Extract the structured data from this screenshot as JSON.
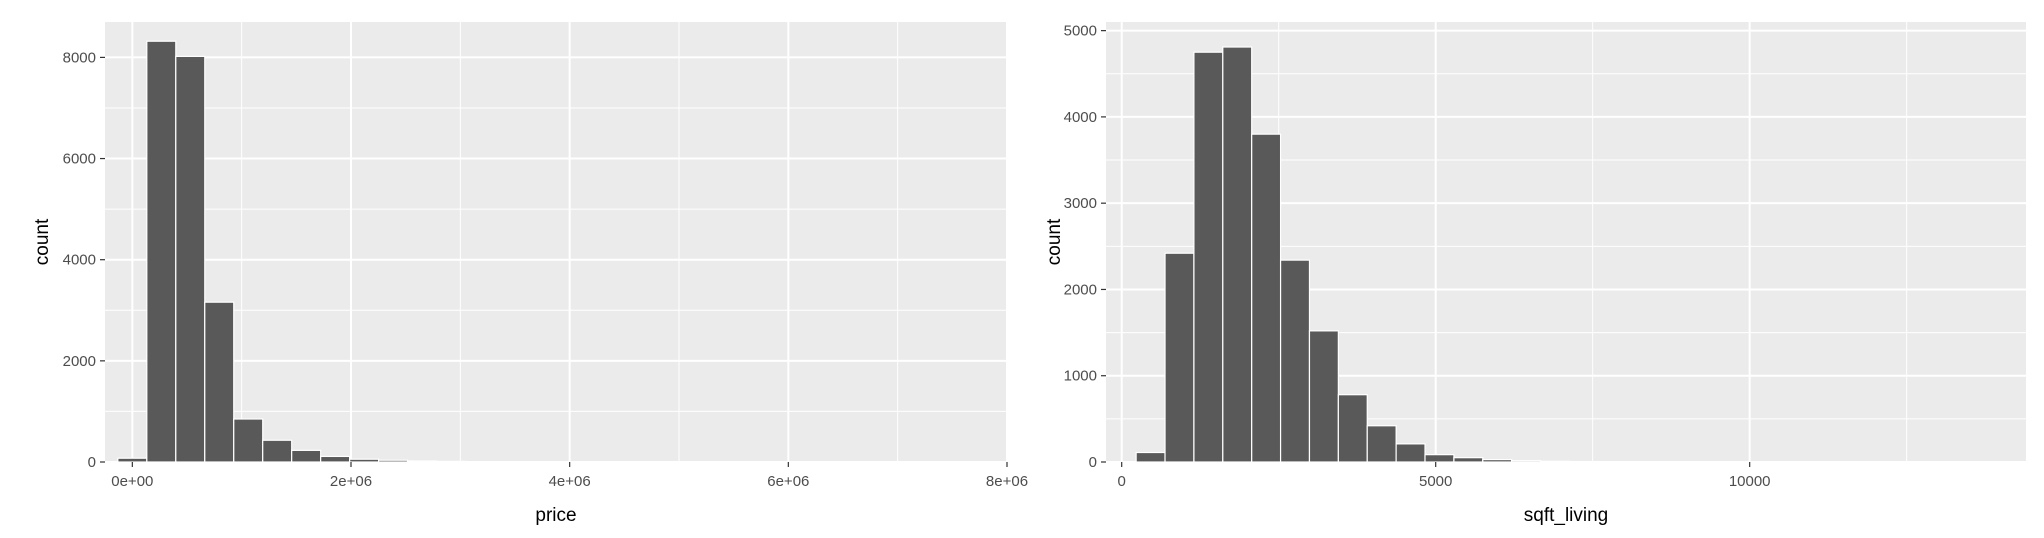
{
  "chart_data": [
    {
      "type": "bar",
      "subtype": "histogram",
      "xlabel": "price",
      "ylabel": "count",
      "xlim": [
        -250000,
        8000000
      ],
      "ylim": [
        0,
        8700
      ],
      "x_ticks": [
        0,
        2000000,
        4000000,
        6000000,
        8000000
      ],
      "x_tick_labels": [
        "0e+00",
        "2e+06",
        "4e+06",
        "6e+06",
        "8e+06"
      ],
      "y_ticks": [
        0,
        2000,
        4000,
        6000,
        8000
      ],
      "y_tick_labels": [
        "0",
        "2000",
        "4000",
        "6000",
        "8000"
      ],
      "bin_width": 265000,
      "bin_centers": [
        0,
        265000,
        530000,
        795000,
        1060000,
        1325000,
        1590000,
        1855000,
        2120000,
        2385000,
        2650000,
        2915000,
        3180000,
        3445000,
        3710000,
        3975000,
        4240000,
        4505000,
        4770000,
        5035000,
        5300000,
        5565000,
        5830000,
        6095000,
        6360000,
        6625000,
        6890000,
        7155000,
        7420000,
        7685000
      ],
      "values": [
        75,
        8320,
        8020,
        3160,
        850,
        430,
        230,
        110,
        55,
        35,
        20,
        12,
        8,
        5,
        4,
        3,
        2,
        2,
        1,
        1,
        1,
        1,
        1,
        0,
        0,
        0,
        0,
        0,
        0,
        1
      ],
      "grid": true,
      "colors": {
        "panel_bg": "#ebebeb",
        "grid": "#ffffff",
        "bar_fill": "#595959",
        "bar_stroke": "#ffffff"
      }
    },
    {
      "type": "bar",
      "subtype": "histogram",
      "xlabel": "sqft_living",
      "ylabel": "count",
      "xlim": [
        -250,
        14400
      ],
      "ylim": [
        0,
        5100
      ],
      "x_ticks": [
        0,
        5000,
        10000
      ],
      "x_tick_labels": [
        "0",
        "5000",
        "10000"
      ],
      "y_ticks": [
        0,
        1000,
        2000,
        3000,
        4000,
        5000
      ],
      "y_tick_labels": [
        "0",
        "1000",
        "2000",
        "3000",
        "4000",
        "5000"
      ],
      "bin_width": 460,
      "bin_centers": [
        460,
        920,
        1380,
        1840,
        2300,
        2760,
        3220,
        3680,
        4140,
        4600,
        5060,
        5520,
        5980,
        6440,
        6900,
        7360,
        7820,
        8280,
        8740,
        9200,
        9660,
        10120,
        10580,
        11040,
        11500,
        11960,
        12420,
        12880,
        13340,
        13800
      ],
      "values": [
        110,
        2420,
        4750,
        4810,
        3800,
        2340,
        1520,
        780,
        420,
        210,
        85,
        50,
        28,
        15,
        8,
        5,
        3,
        2,
        1,
        1,
        1,
        0,
        0,
        0,
        0,
        0,
        0,
        0,
        0,
        1
      ],
      "grid": true,
      "colors": {
        "panel_bg": "#ebebeb",
        "grid": "#ffffff",
        "bar_fill": "#595959",
        "bar_stroke": "#ffffff"
      }
    }
  ]
}
